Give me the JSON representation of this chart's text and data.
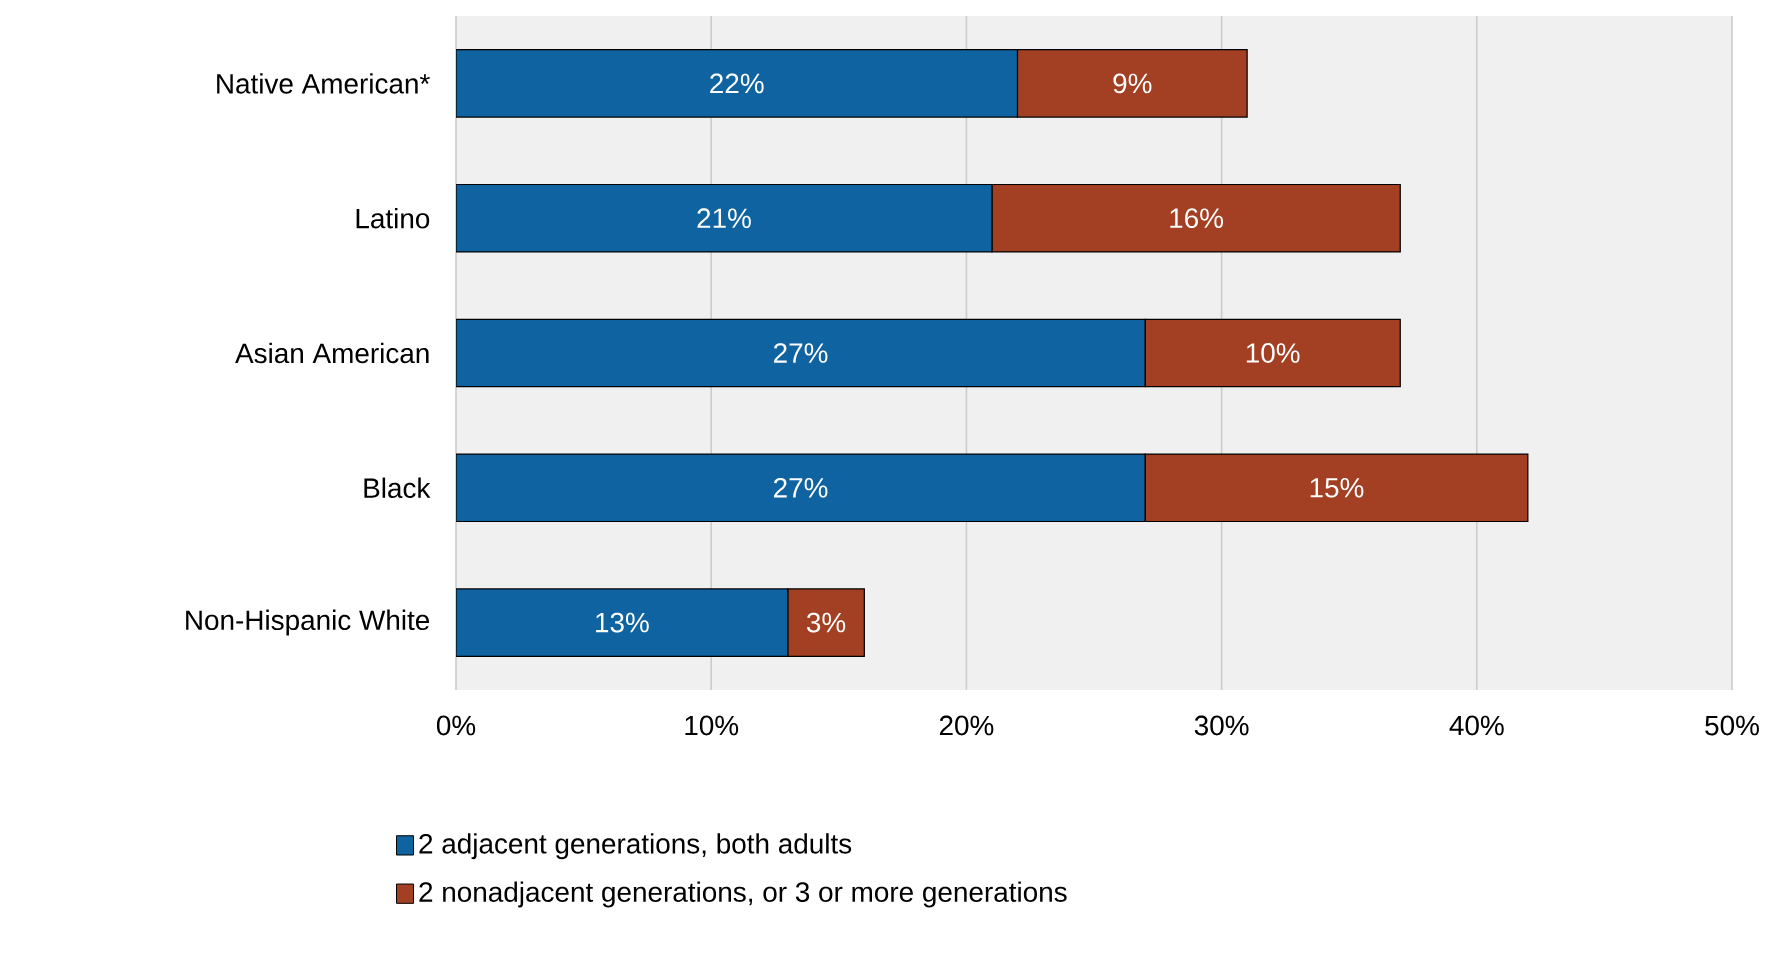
{
  "chart_data": {
    "type": "bar",
    "orientation": "horizontal",
    "stacked": true,
    "categories": [
      "Native American*",
      "Latino",
      "Asian American",
      "Black",
      "Non-Hispanic White"
    ],
    "series": [
      {
        "name": "2 adjacent generations, both adults",
        "color": "#0f63a0",
        "values": [
          22,
          21,
          27,
          27,
          13
        ],
        "value_labels": [
          "22%",
          "21%",
          "27%",
          "27%",
          "13%"
        ]
      },
      {
        "name": "2 nonadjacent generations, or 3 or more generations",
        "color": "#a33f22",
        "values": [
          9,
          16,
          10,
          15,
          3
        ],
        "value_labels": [
          "9%",
          "16%",
          "10%",
          "15%",
          "3%"
        ]
      }
    ],
    "xlim": [
      0,
      50
    ],
    "xticks": [
      {
        "value": 0,
        "label": "0%"
      },
      {
        "value": 10,
        "label": "10%"
      },
      {
        "value": 20,
        "label": "20%"
      },
      {
        "value": 30,
        "label": "30%"
      },
      {
        "value": 40,
        "label": "40%"
      },
      {
        "value": 50,
        "label": "50%"
      }
    ],
    "grid": "x",
    "legend": "bottom"
  }
}
